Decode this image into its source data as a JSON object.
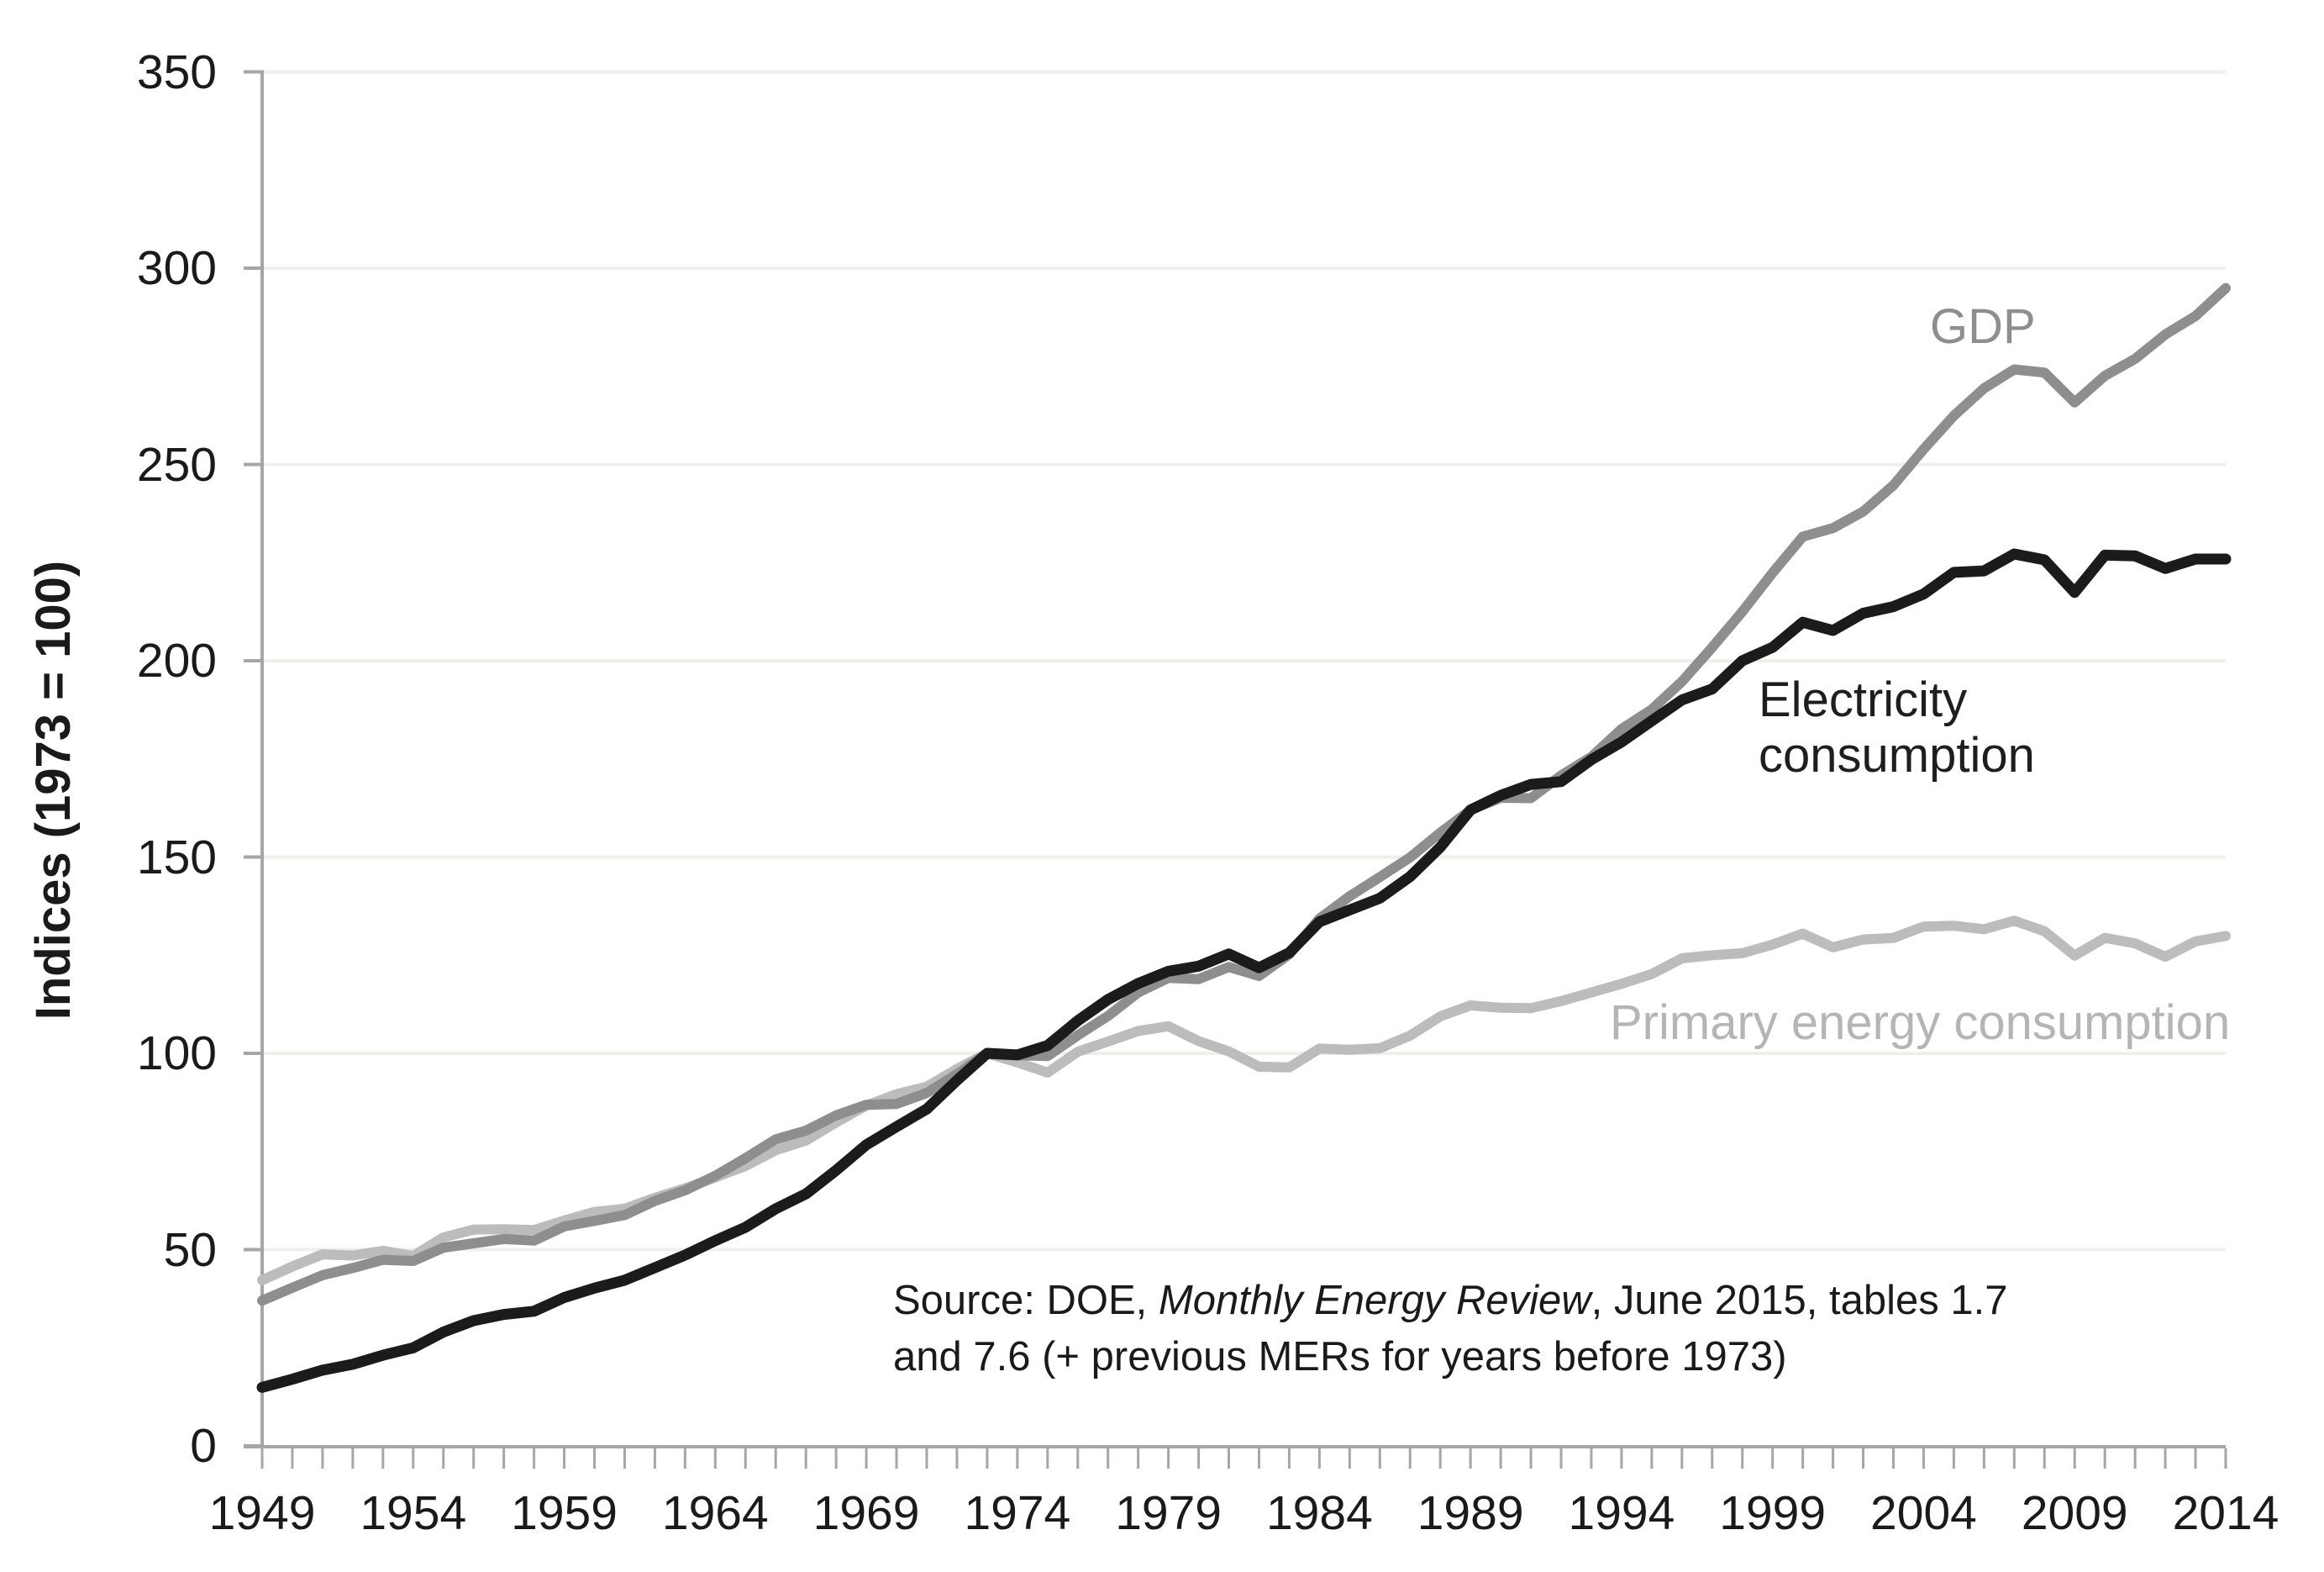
{
  "chart_data": {
    "type": "line",
    "title": "",
    "ylabel": "Indices (1973 = 100)",
    "xlabel": "",
    "ylim": [
      0,
      350
    ],
    "xlim": [
      1949,
      2014
    ],
    "grid": "horizontal-only",
    "legend_position": "inline-annotations",
    "y_ticks": [
      0,
      50,
      100,
      150,
      200,
      250,
      300,
      350
    ],
    "x_ticks": [
      1949,
      1954,
      1959,
      1964,
      1969,
      1974,
      1979,
      1984,
      1989,
      1994,
      1999,
      2004,
      2009,
      2014
    ],
    "colors": {
      "grid": "#f1efec",
      "axis": "#a6a6a6"
    },
    "x": [
      1949,
      1950,
      1951,
      1952,
      1953,
      1954,
      1955,
      1956,
      1957,
      1958,
      1959,
      1960,
      1961,
      1962,
      1963,
      1964,
      1965,
      1966,
      1967,
      1968,
      1969,
      1970,
      1971,
      1972,
      1973,
      1974,
      1975,
      1976,
      1977,
      1978,
      1979,
      1980,
      1981,
      1982,
      1983,
      1984,
      1985,
      1986,
      1987,
      1988,
      1989,
      1990,
      1991,
      1992,
      1993,
      1994,
      1995,
      1996,
      1997,
      1998,
      1999,
      2000,
      2001,
      2002,
      2003,
      2004,
      2005,
      2006,
      2007,
      2008,
      2009,
      2010,
      2011,
      2012,
      2013,
      2014
    ],
    "series": [
      {
        "id": "primary-energy",
        "name": "Primary energy consumption",
        "color": "#bcbcbc",
        "width": 12,
        "values": [
          42.2,
          45.7,
          48.8,
          48.5,
          49.7,
          48.4,
          53.1,
          55.1,
          55.2,
          55.0,
          57.4,
          59.6,
          60.4,
          63.2,
          65.6,
          68.4,
          71.3,
          75.3,
          77.8,
          82.4,
          86.7,
          89.6,
          91.5,
          96.0,
          100,
          97.7,
          95.1,
          100.4,
          103.0,
          105.7,
          106.9,
          103.1,
          100.5,
          96.6,
          96.4,
          101.2,
          100.9,
          101.3,
          104.5,
          109.4,
          112.2,
          111.6,
          111.5,
          113.3,
          115.5,
          117.7,
          120.2,
          124.2,
          125.0,
          125.5,
          127.7,
          130.5,
          127.0,
          129.0,
          129.4,
          132.3,
          132.5,
          131.6,
          133.8,
          131.1,
          124.9,
          129.4,
          128.0,
          124.6,
          128.5,
          129.9
        ]
      },
      {
        "id": "gdp",
        "name": "GDP",
        "color": "#8e8e8e",
        "width": 12,
        "values": [
          37.0,
          40.3,
          43.5,
          45.3,
          47.4,
          47.1,
          50.5,
          51.6,
          52.7,
          52.3,
          55.9,
          57.3,
          58.8,
          62.4,
          65.1,
          68.8,
          73.3,
          78.1,
          80.3,
          84.2,
          86.9,
          87.1,
          89.9,
          94.7,
          100,
          99.5,
          99.3,
          104.6,
          109.5,
          115.5,
          119.2,
          118.9,
          122.0,
          119.7,
          125.2,
          134.3,
          140.0,
          144.9,
          149.9,
          156.2,
          162.0,
          165.1,
          165.0,
          170.8,
          175.5,
          182.6,
          187.6,
          194.7,
          203.4,
          212.5,
          222.4,
          231.6,
          233.8,
          238.0,
          244.7,
          253.9,
          262.4,
          269.4,
          274.2,
          273.4,
          265.8,
          272.6,
          276.9,
          283.1,
          287.8,
          294.9
        ]
      },
      {
        "id": "electricity",
        "name": "Electricity consumption",
        "label_lines": [
          "Electricity",
          "consumption"
        ],
        "color": "#1b1b1b",
        "width": 13,
        "values": [
          14.9,
          17.0,
          19.3,
          20.8,
          23.1,
          25.0,
          29.0,
          31.9,
          33.5,
          34.3,
          37.8,
          40.2,
          42.2,
          45.4,
          48.6,
          52.3,
          55.7,
          60.4,
          64.2,
          70.2,
          76.7,
          81.3,
          85.8,
          93.1,
          100,
          99.6,
          102.0,
          108.3,
          113.7,
          117.8,
          120.9,
          122.2,
          125.3,
          121.8,
          125.6,
          133.5,
          136.5,
          139.5,
          145.0,
          152.5,
          162.0,
          165.7,
          168.5,
          169.2,
          174.8,
          179.3,
          184.7,
          190.0,
          192.8,
          200.0,
          203.4,
          209.8,
          207.7,
          212.1,
          213.8,
          217.0,
          222.5,
          222.9,
          227.2,
          225.7,
          217.4,
          226.9,
          226.7,
          223.5,
          225.9,
          225.9
        ]
      }
    ]
  },
  "source_note": {
    "line1_prefix": "Source: DOE, ",
    "line1_italic": "Monthly Energy Review",
    "line1_suffix": ", June 2015, tables 1.7",
    "line2": "and 7.6 (+ previous MERs for years before 1973)"
  }
}
